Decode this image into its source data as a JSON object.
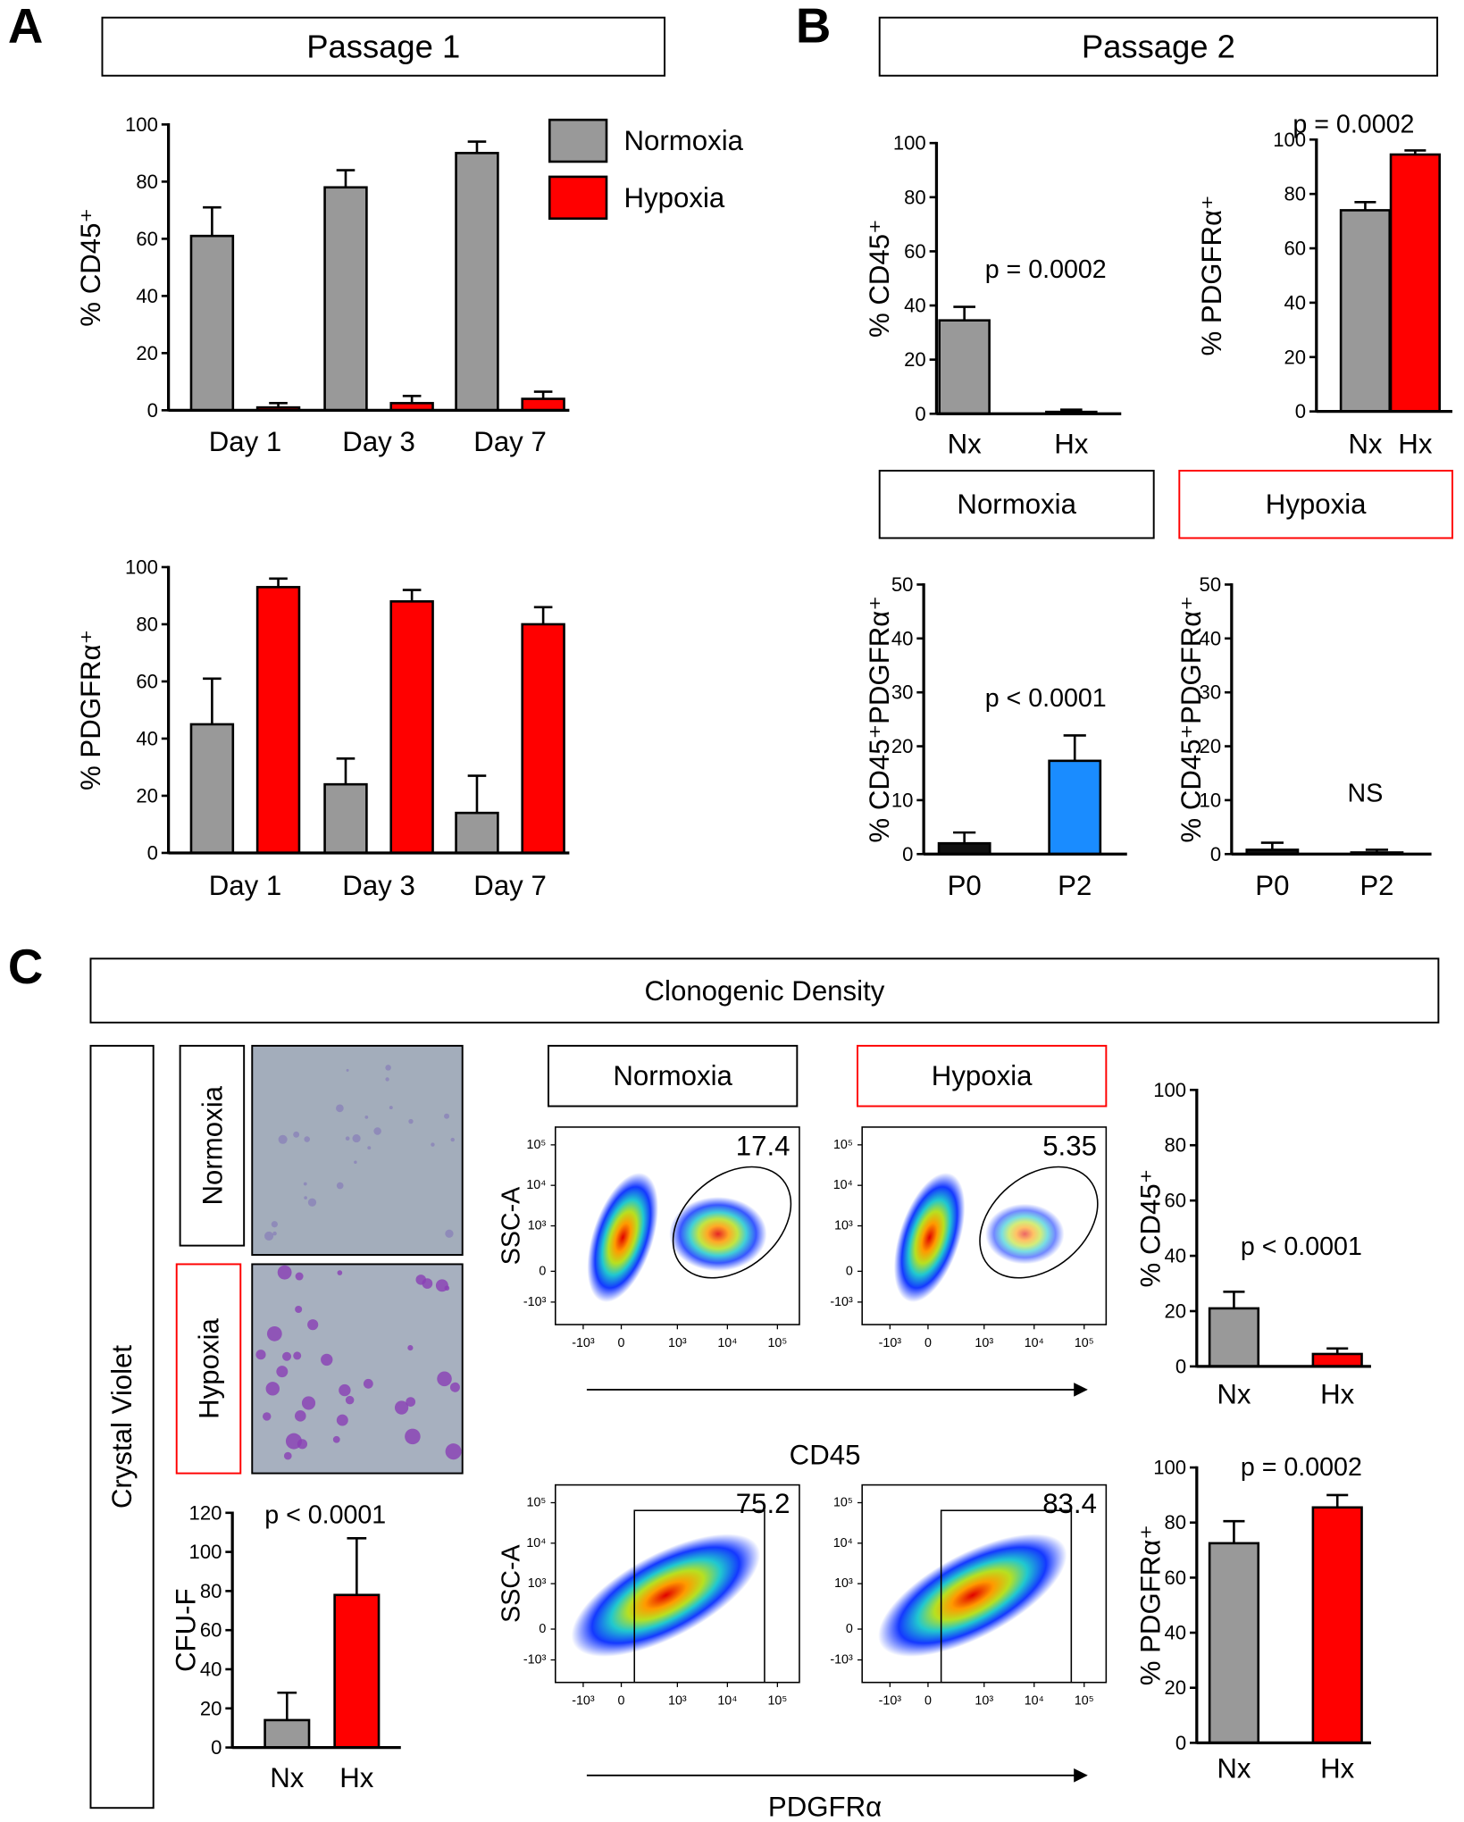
{
  "panels": [
    "A",
    "B",
    "C"
  ],
  "labels": {
    "passage_1": "Passage 1",
    "passage_2": "Passage 2",
    "clonogenic": "Clonogenic Density",
    "crystal_violet": "Crystal Violet",
    "photo_rows": [
      "Normoxia",
      "Hypoxia"
    ],
    "photo_row_colors": [
      "#000000",
      "#ff0000"
    ]
  },
  "chart_data": [
    {
      "type": "bar",
      "ylabel": "% CD45⁺",
      "categories": [
        "Day 1",
        "Day 3",
        "Day 7"
      ],
      "series": [
        {
          "name": "Normoxia",
          "color": "#999999",
          "values": [
            61,
            78,
            90
          ],
          "errors": [
            10,
            6,
            4
          ]
        },
        {
          "name": "Hypoxia",
          "color": "#ff0000",
          "values": [
            1,
            2.5,
            4
          ],
          "errors": [
            1.5,
            2.5,
            2.5
          ]
        }
      ],
      "ylim": [
        0,
        100
      ],
      "yticks": [
        0,
        20,
        40,
        60,
        80,
        100
      ],
      "legend": "top-right"
    },
    {
      "type": "bar",
      "ylabel": "% PDGFRα⁺",
      "categories": [
        "Day 1",
        "Day 3",
        "Day 7"
      ],
      "series": [
        {
          "color": "#999999",
          "values": [
            45,
            24,
            14
          ],
          "errors": [
            16,
            9,
            13
          ]
        },
        {
          "color": "#ff0000",
          "values": [
            93,
            88,
            80
          ],
          "errors": [
            3,
            4,
            6
          ]
        }
      ],
      "ylim": [
        0,
        100
      ],
      "yticks": [
        0,
        20,
        40,
        60,
        80,
        100
      ]
    },
    {
      "type": "bar",
      "ylabel": "% CD45⁺",
      "categories": [
        "Nx",
        "Hx"
      ],
      "category_colors": [
        "#000000",
        "#ff0000"
      ],
      "values": [
        34.5,
        0.7
      ],
      "errors": [
        5,
        0.8
      ],
      "colors": [
        "#999999",
        "#ff0000"
      ],
      "annotation": "p = 0.0002",
      "ylim": [
        0,
        100
      ],
      "yticks": [
        0,
        20,
        40,
        60,
        80,
        100
      ]
    },
    {
      "type": "bar",
      "ylabel": "% PDGFRα⁺",
      "categories": [
        "Nx",
        "Hx"
      ],
      "category_colors": [
        "#000000",
        "#ff0000"
      ],
      "values": [
        74,
        94.5
      ],
      "errors": [
        3,
        1.5
      ],
      "colors": [
        "#999999",
        "#ff0000"
      ],
      "annotation": "p = 0.0002",
      "ylim": [
        0,
        100
      ],
      "yticks": [
        0,
        20,
        40,
        60,
        80,
        100
      ]
    },
    {
      "type": "bar",
      "title": "Normoxia",
      "title_color": "#000000",
      "ylabel": "% CD45⁺PDGFRα⁺",
      "categories": [
        "P0",
        "P2"
      ],
      "values": [
        2,
        17.3
      ],
      "errors": [
        2,
        4.7
      ],
      "colors": [
        "#111111",
        "#1a8cff"
      ],
      "annotation": "p < 0.0001",
      "ylim": [
        0,
        50
      ],
      "yticks": [
        0,
        10,
        20,
        30,
        40,
        50
      ]
    },
    {
      "type": "bar",
      "title": "Hypoxia",
      "title_color": "#ff0000",
      "ylabel": "% CD45⁺PDGFRα⁺",
      "categories": [
        "P0",
        "P2"
      ],
      "values": [
        0.8,
        0.3
      ],
      "errors": [
        1.3,
        0.5
      ],
      "colors": [
        "#111111",
        "#111111"
      ],
      "annotation": "NS",
      "ylim": [
        0,
        50
      ],
      "yticks": [
        0,
        10,
        20,
        30,
        40,
        50
      ]
    },
    {
      "type": "bar",
      "ylabel": "CFU-F",
      "categories": [
        "Nx",
        "Hx"
      ],
      "category_colors": [
        "#000000",
        "#ff0000"
      ],
      "values": [
        14,
        78
      ],
      "errors": [
        14,
        29
      ],
      "colors": [
        "#999999",
        "#ff0000"
      ],
      "annotation": "p < 0.0001",
      "ylim": [
        0,
        120
      ],
      "yticks": [
        0,
        20,
        40,
        60,
        80,
        100,
        120
      ]
    },
    {
      "type": "bar",
      "ylabel": "% CD45⁺",
      "categories": [
        "Nx",
        "Hx"
      ],
      "category_colors": [
        "#000000",
        "#ff0000"
      ],
      "values": [
        21,
        4.5
      ],
      "errors": [
        6,
        2
      ],
      "colors": [
        "#999999",
        "#ff0000"
      ],
      "annotation": "p < 0.0001",
      "ylim": [
        0,
        100
      ],
      "yticks": [
        0,
        20,
        40,
        60,
        80,
        100
      ]
    },
    {
      "type": "bar",
      "ylabel": "% PDGFRα⁺",
      "categories": [
        "Nx",
        "Hx"
      ],
      "category_colors": [
        "#000000",
        "#ff0000"
      ],
      "values": [
        72.5,
        85.5
      ],
      "errors": [
        8,
        4.5
      ],
      "colors": [
        "#999999",
        "#ff0000"
      ],
      "annotation": "p = 0.0002",
      "ylim": [
        0,
        100
      ],
      "yticks": [
        0,
        20,
        40,
        60,
        80,
        100
      ]
    }
  ],
  "flow": {
    "headers": [
      "Normoxia",
      "Hypoxia"
    ],
    "header_colors": [
      "#000000",
      "#ff0000"
    ],
    "ylabel": "SSC-A",
    "ticks": [
      {
        "value": -1000,
        "label": "-10³"
      },
      {
        "value": 0,
        "label": "0"
      },
      {
        "value": 1000,
        "label": "10³"
      },
      {
        "value": 10000,
        "label": "10⁴"
      },
      {
        "value": 100000,
        "label": "10⁵"
      }
    ],
    "rows": [
      {
        "xlabel": "CD45",
        "gates": [
          17.4,
          5.35
        ]
      },
      {
        "xlabel": "PDGFRα",
        "gates": [
          75.2,
          83.4
        ]
      }
    ]
  }
}
